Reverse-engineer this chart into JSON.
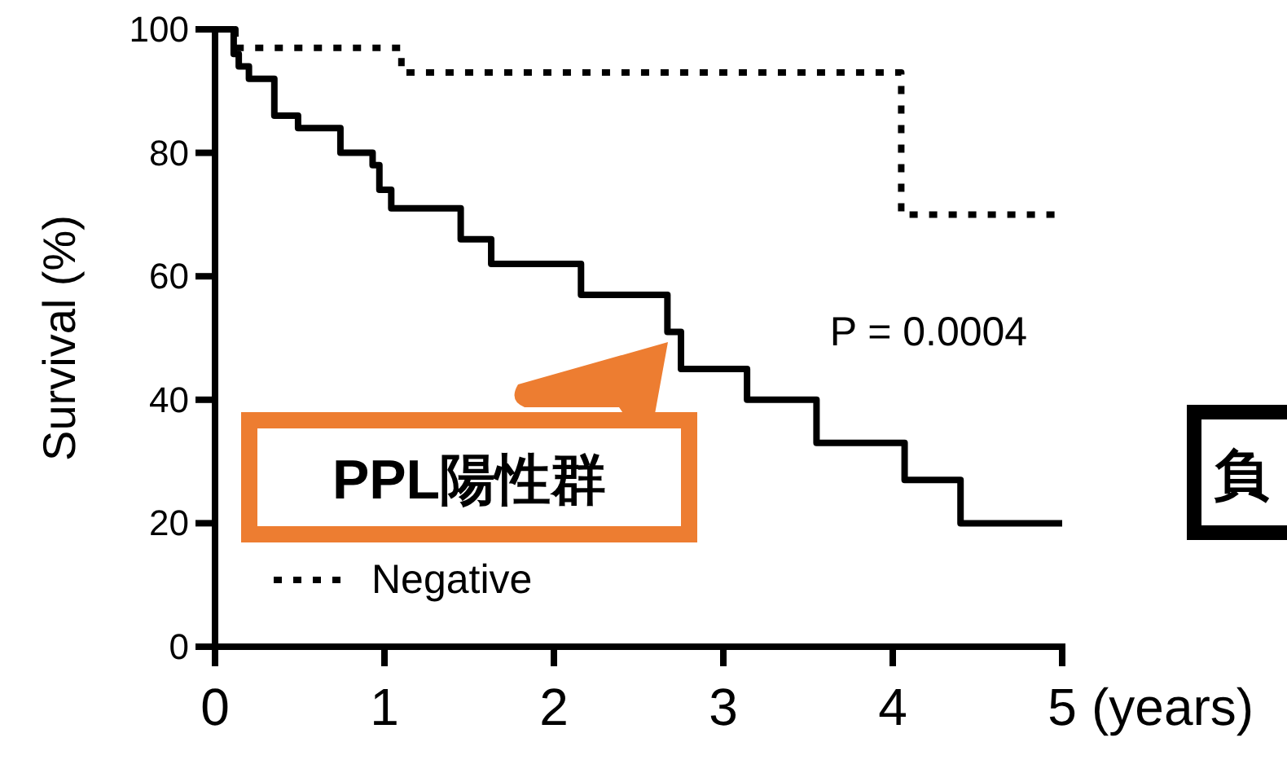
{
  "chart_data": {
    "type": "step",
    "ylabel": "Survival (%)",
    "xlabel": "(years)",
    "xlim": [
      0,
      5
    ],
    "xticks": [
      0,
      1,
      2,
      3,
      4,
      5
    ],
    "ylim": [
      0,
      100
    ],
    "yticks": [
      0,
      20,
      40,
      60,
      80,
      100
    ],
    "grid": false,
    "legend": "bottom left",
    "series": [
      {
        "name": "PPL陽性群",
        "color": "#000000",
        "line_style": "solid",
        "x": [
          0,
          0.11,
          0.14,
          0.2,
          0.35,
          0.49,
          0.74,
          0.93,
          0.97,
          1.04,
          1.45,
          1.63,
          2.16,
          2.67,
          2.75,
          3.14,
          3.55,
          4.07,
          4.4,
          5
        ],
        "values": [
          100,
          96,
          94,
          92,
          86,
          84,
          80,
          78,
          74,
          71,
          66,
          62,
          57,
          51,
          45,
          40,
          33,
          27,
          20,
          20
        ]
      },
      {
        "name": "Negative",
        "color": "#000000",
        "line_style": "dotted",
        "x": [
          0,
          0.12,
          1.1,
          4.05,
          5
        ],
        "values": [
          100,
          97,
          93,
          70,
          70
        ]
      }
    ],
    "annotations": [
      "P = 0.0004",
      "負"
    ]
  }
}
